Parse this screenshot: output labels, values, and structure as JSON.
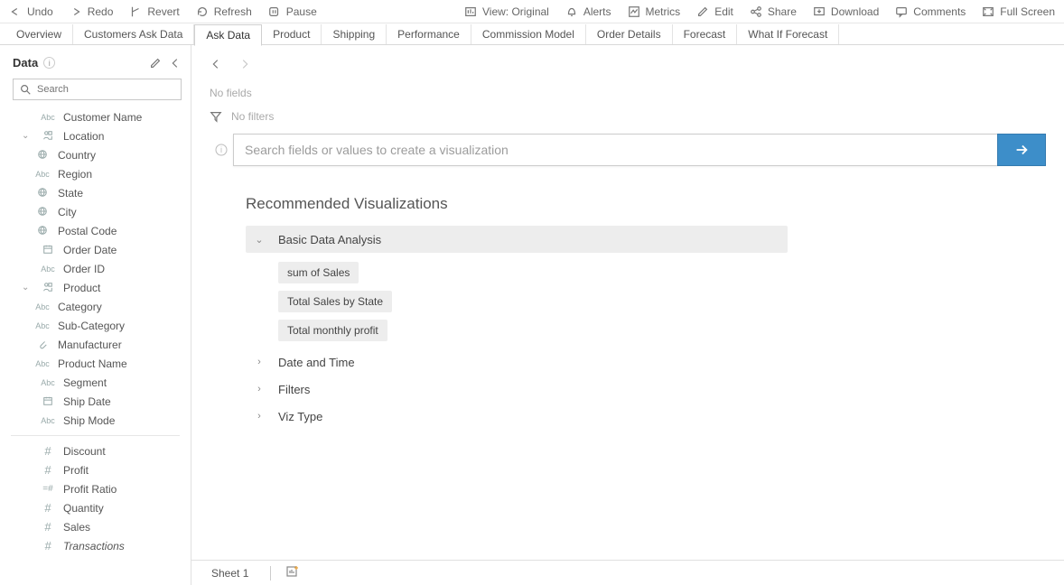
{
  "toolbar": {
    "undo": "Undo",
    "redo": "Redo",
    "revert": "Revert",
    "refresh": "Refresh",
    "pause": "Pause",
    "view": "View: Original",
    "alerts": "Alerts",
    "metrics": "Metrics",
    "edit": "Edit",
    "share": "Share",
    "download": "Download",
    "comments": "Comments",
    "fullscreen": "Full Screen"
  },
  "tabs": [
    "Overview",
    "Customers Ask Data",
    "Ask Data",
    "Product",
    "Shipping",
    "Performance",
    "Commission Model",
    "Order Details",
    "Forecast",
    "What If Forecast"
  ],
  "active_tab": "Ask Data",
  "data_panel": {
    "title": "Data",
    "search_placeholder": "Search",
    "fields": [
      {
        "label": "Customer Name",
        "type": "abc",
        "depth": 1
      },
      {
        "label": "Location",
        "type": "person",
        "depth": 1,
        "chev": "v"
      },
      {
        "label": "Country",
        "type": "globe",
        "depth": 2
      },
      {
        "label": "Region",
        "type": "abc",
        "depth": 2
      },
      {
        "label": "State",
        "type": "globe",
        "depth": 2
      },
      {
        "label": "City",
        "type": "globe",
        "depth": 2
      },
      {
        "label": "Postal Code",
        "type": "globe",
        "depth": 2
      },
      {
        "label": "Order Date",
        "type": "cal",
        "depth": 1
      },
      {
        "label": "Order ID",
        "type": "abc",
        "depth": 1
      },
      {
        "label": "Product",
        "type": "person",
        "depth": 1,
        "chev": "v"
      },
      {
        "label": "Category",
        "type": "abc",
        "depth": 2
      },
      {
        "label": "Sub-Category",
        "type": "abc",
        "depth": 2
      },
      {
        "label": "Manufacturer",
        "type": "clip",
        "depth": 2
      },
      {
        "label": "Product Name",
        "type": "abc",
        "depth": 2
      },
      {
        "label": "Segment",
        "type": "abc",
        "depth": 1
      },
      {
        "label": "Ship Date",
        "type": "cal",
        "depth": 1
      },
      {
        "label": "Ship Mode",
        "type": "abc",
        "depth": 1
      }
    ],
    "measures": [
      {
        "label": "Discount",
        "type": "hash"
      },
      {
        "label": "Profit",
        "type": "hash"
      },
      {
        "label": "Profit Ratio",
        "type": "ratio"
      },
      {
        "label": "Quantity",
        "type": "hash"
      },
      {
        "label": "Sales",
        "type": "hash"
      },
      {
        "label": "Transactions",
        "type": "hash",
        "italic": true
      }
    ]
  },
  "workspace": {
    "no_fields": "No fields",
    "no_filters": "No filters",
    "search_placeholder": "Search fields or values to create a visualization",
    "rec_title": "Recommended Visualizations",
    "cats": [
      {
        "label": "Basic Data Analysis",
        "open": true,
        "items": [
          "sum of Sales",
          "Total Sales by State",
          "Total monthly profit"
        ]
      },
      {
        "label": "Date and Time",
        "open": false
      },
      {
        "label": "Filters",
        "open": false
      },
      {
        "label": "Viz Type",
        "open": false
      }
    ],
    "sheet": "Sheet 1"
  }
}
